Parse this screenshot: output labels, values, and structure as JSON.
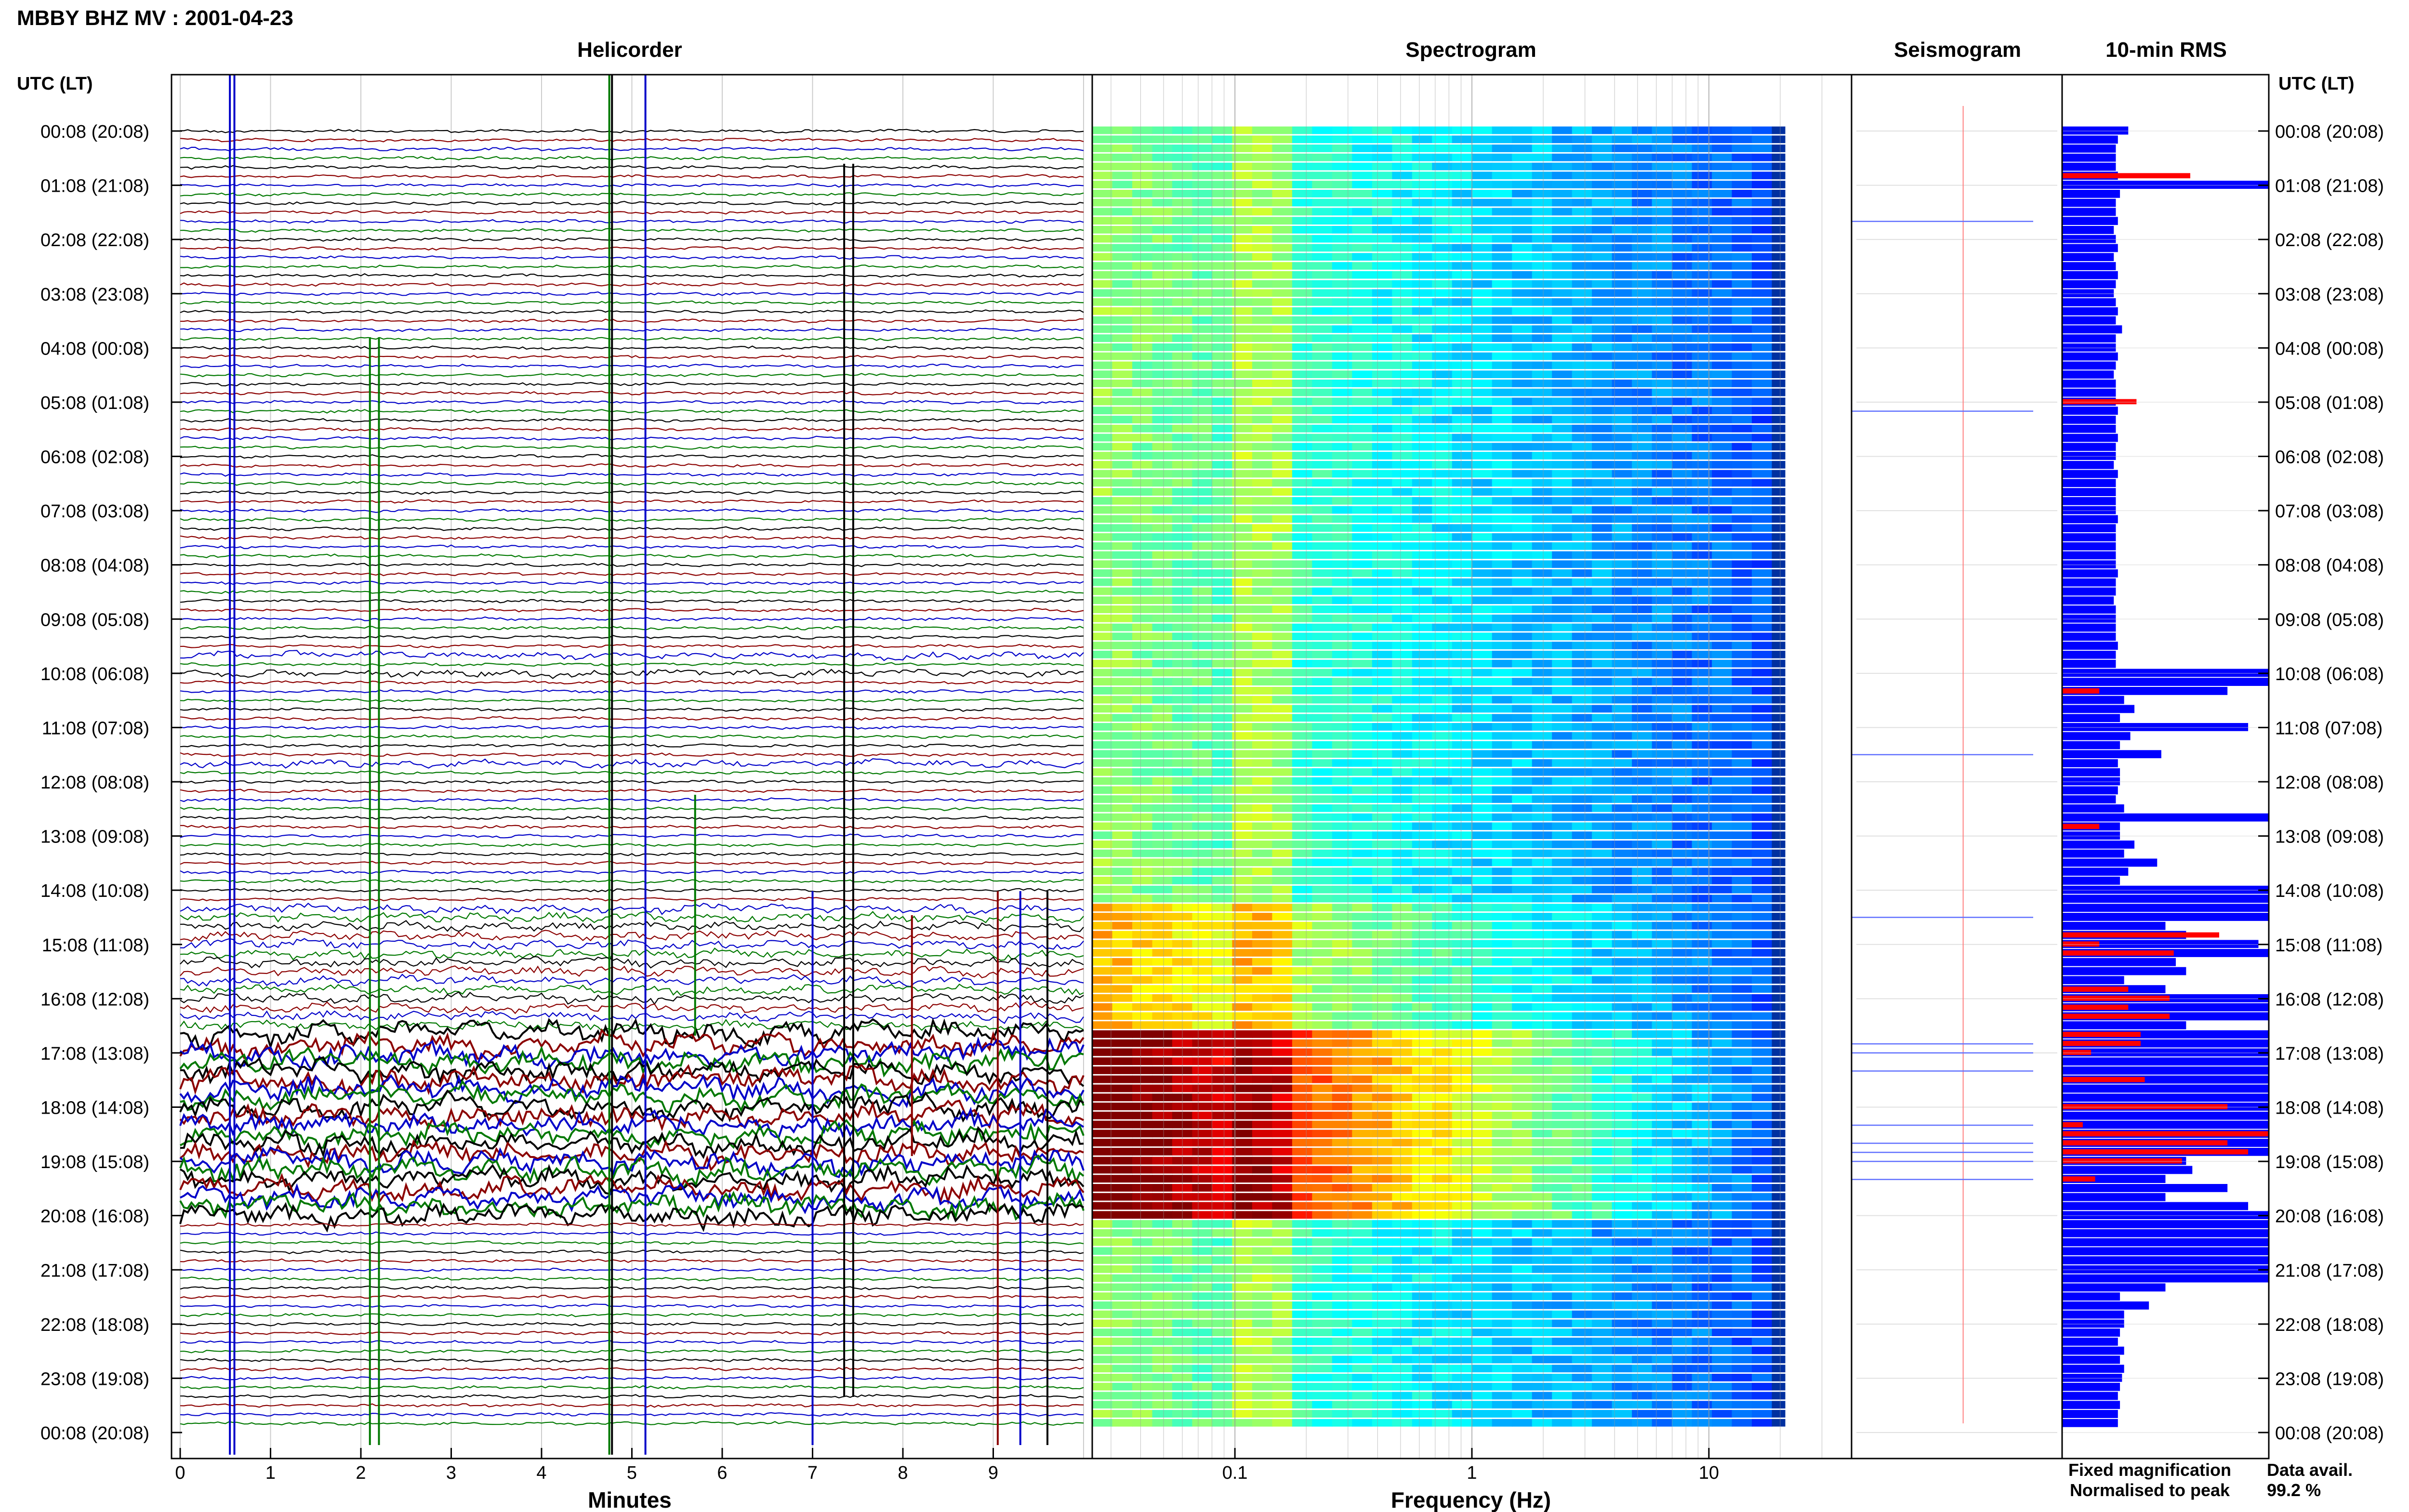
{
  "header": {
    "title": "MBBY BHZ MV : 2001-04-23",
    "time_axis_label": "UTC (LT)"
  },
  "panels": {
    "helicorder": "Helicorder",
    "spectrogram": "Spectrogram",
    "seismogram": "Seismogram",
    "rms": "10-min RMS"
  },
  "footer": {
    "fixed_magnification": "Fixed magnification",
    "normalised_to_peak": "Normalised to peak",
    "data_avail_label": "Data avail.",
    "data_avail_value": "99.2 %"
  },
  "colors": {
    "trace_black": "#000000",
    "trace_red": "#8b0000",
    "trace_blue": "#0000c8",
    "trace_green": "#007800",
    "rms_fixed": "#0000ff",
    "rms_normalised": "#ff0000"
  },
  "chart_data": [
    {
      "type": "line",
      "title": "Helicorder",
      "xlabel": "Minutes",
      "x_ticks": [
        "0",
        "1",
        "2",
        "3",
        "4",
        "5",
        "6",
        "7",
        "8",
        "9"
      ],
      "xlim": [
        0,
        10
      ],
      "row_interval_minutes": 10,
      "rows": 144,
      "y_tick_labels": [
        "00:08 (20:08)",
        "01:08 (21:08)",
        "02:08 (22:08)",
        "03:08 (23:08)",
        "04:08 (00:08)",
        "05:08 (01:08)",
        "06:08 (02:08)",
        "07:08 (03:08)",
        "08:08 (04:08)",
        "09:08 (05:08)",
        "10:08 (06:08)",
        "11:08 (07:08)",
        "12:08 (08:08)",
        "13:08 (09:08)",
        "14:08 (10:08)",
        "15:08 (11:08)",
        "16:08 (12:08)",
        "17:08 (13:08)",
        "18:08 (14:08)",
        "19:08 (15:08)",
        "20:08 (16:08)",
        "21:08 (17:08)",
        "22:08 (18:08)",
        "23:08 (19:08)",
        "00:08 (20:08)"
      ],
      "trace_color_cycle": [
        "black",
        "red",
        "blue",
        "green"
      ]
    },
    {
      "type": "heatmap",
      "title": "Spectrogram",
      "xlabel": "Frequency (Hz)",
      "x_scale": "log",
      "x_ticks": [
        "0.1",
        "1",
        "10"
      ],
      "xlim": [
        0.025,
        40
      ],
      "colormap": "jet",
      "rows": 144,
      "high_energy_rows": [
        "15:08-16:08 (11:08-12:08)",
        "17:08-20:08 (13:08-16:08)"
      ]
    },
    {
      "type": "line",
      "title": "Seismogram",
      "rows": 24
    },
    {
      "type": "bar",
      "title": "10-min RMS",
      "orientation": "horizontal",
      "series": [
        {
          "name": "Fixed magnification",
          "color": "#0000ff"
        },
        {
          "name": "Normalised to peak",
          "color": "#ff0000"
        }
      ],
      "row_interval_minutes": 10,
      "rows": 144,
      "values_fraction_of_panel_width": [
        0.32,
        0.27,
        0.26,
        0.26,
        0.26,
        0.27,
        1.0,
        0.28,
        0.26,
        0.26,
        0.27,
        0.25,
        0.26,
        0.27,
        0.25,
        0.26,
        0.27,
        0.26,
        0.25,
        0.26,
        0.27,
        0.26,
        0.29,
        0.26,
        0.26,
        0.27,
        0.26,
        0.25,
        0.26,
        0.26,
        0.26,
        0.27,
        0.26,
        0.26,
        0.27,
        0.26,
        0.26,
        0.25,
        0.27,
        0.26,
        0.26,
        0.26,
        0.26,
        0.27,
        0.26,
        0.26,
        0.26,
        0.26,
        0.26,
        0.27,
        0.26,
        0.26,
        0.25,
        0.26,
        0.26,
        0.26,
        0.26,
        0.27,
        0.26,
        0.26,
        1.0,
        1.0,
        0.8,
        0.3,
        0.35,
        0.28,
        0.9,
        0.33,
        0.28,
        0.48,
        0.27,
        0.28,
        0.28,
        0.27,
        0.26,
        0.3,
        1.0,
        0.28,
        0.28,
        0.35,
        0.3,
        0.46,
        0.32,
        0.28,
        1.0,
        1.0,
        1.0,
        1.0,
        0.5,
        0.6,
        0.95,
        1.0,
        0.55,
        0.6,
        0.3,
        0.5,
        1.0,
        1.0,
        1.0,
        0.6,
        1.0,
        1.0,
        1.0,
        1.0,
        1.0,
        1.0,
        1.0,
        1.0,
        1.0,
        1.0,
        1.0,
        1.0,
        1.0,
        1.0,
        0.6,
        0.63,
        0.5,
        0.8,
        0.5,
        0.9,
        1.0,
        1.0,
        1.0,
        1.0,
        1.0,
        1.0,
        1.0,
        1.0,
        0.5,
        0.28,
        0.42,
        0.3,
        0.3,
        0.28,
        0.27,
        0.3,
        0.28,
        0.3,
        0.29,
        0.28,
        0.27,
        0.28,
        0.27,
        0.27
      ],
      "normalised_rows": {
        "5": 0.62,
        "30": 0.36,
        "62": 0.18,
        "77": 0.18,
        "89": 0.76,
        "90": 0.18,
        "91": 0.54,
        "95": 0.32,
        "96": 0.52,
        "97": 0.32,
        "98": 0.52,
        "100": 0.38,
        "101": 0.38,
        "102": 0.14,
        "105": 0.4,
        "108": 0.8,
        "110": 0.1,
        "111": 1.0,
        "112": 0.8,
        "113": 0.9,
        "114": 0.58,
        "116": 0.16
      }
    }
  ]
}
